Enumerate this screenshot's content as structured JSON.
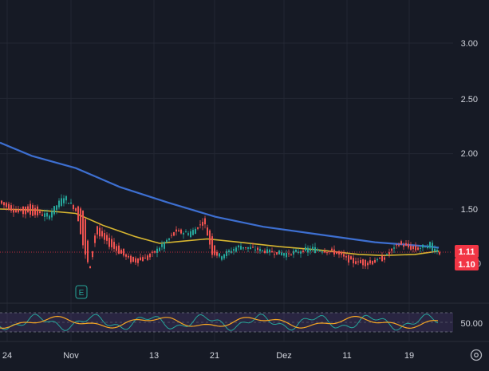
{
  "chart": {
    "price_axis": {
      "labels": [
        "3.00",
        "2.50",
        "2.00",
        "1.50"
      ],
      "values": [
        3.0,
        2.5,
        2.0,
        1.5
      ],
      "partial_label": "0"
    },
    "price_tags": {
      "upper": {
        "label": "1.11",
        "color": "#f23645"
      },
      "lower": {
        "label": "1.10",
        "color": "#f23645"
      }
    },
    "earnings_marker": {
      "label": "E"
    },
    "indicator": {
      "axis_label": "50.00",
      "band_color": "#7e57c2"
    },
    "time_axis": {
      "labels": [
        "24",
        "Nov",
        "13",
        "21",
        "Dez",
        "11",
        "19"
      ]
    },
    "settings_icon": "gear-icon"
  },
  "chart_data": {
    "type": "candlestick",
    "ylim": [
      0.95,
      3.15
    ],
    "yticks": [
      1.5,
      2.0,
      2.5,
      3.0
    ],
    "grid": true,
    "x_tick_labels": [
      "24",
      "Nov",
      "13",
      "21",
      "Dez",
      "11",
      "19"
    ],
    "last_value_labels": [
      "1.11",
      "1.10"
    ],
    "series": [
      {
        "type": "line",
        "color": "#3d6fd1",
        "values_by_x": [
          [
            0,
            2.1
          ],
          [
            40,
            1.98
          ],
          [
            95,
            1.87
          ],
          [
            150,
            1.7
          ],
          [
            210,
            1.56
          ],
          [
            270,
            1.43
          ],
          [
            330,
            1.34
          ],
          [
            400,
            1.27
          ],
          [
            470,
            1.2
          ],
          [
            540,
            1.16
          ],
          [
            550,
            1.15
          ]
        ]
      },
      {
        "type": "line",
        "color": "#d6b530",
        "values_by_x": [
          [
            0,
            1.5
          ],
          [
            50,
            1.49
          ],
          [
            95,
            1.46
          ],
          [
            130,
            1.35
          ],
          [
            170,
            1.25
          ],
          [
            200,
            1.19
          ],
          [
            230,
            1.21
          ],
          [
            260,
            1.23
          ],
          [
            300,
            1.2
          ],
          [
            350,
            1.16
          ],
          [
            400,
            1.13
          ],
          [
            450,
            1.09
          ],
          [
            480,
            1.08
          ],
          [
            520,
            1.09
          ],
          [
            550,
            1.12
          ]
        ]
      }
    ],
    "candles_by_x": [
      [
        0,
        1.58,
        1.55
      ],
      [
        20,
        1.5,
        1.47
      ],
      [
        40,
        1.55,
        1.45
      ],
      [
        60,
        1.4,
        1.45
      ],
      [
        80,
        1.58,
        1.62
      ],
      [
        95,
        1.52,
        1.48
      ],
      [
        105,
        1.48,
        1.1
      ],
      [
        112,
        1.0,
        0.95
      ],
      [
        120,
        1.35,
        1.28
      ],
      [
        135,
        1.25,
        1.18
      ],
      [
        150,
        1.15,
        1.1
      ],
      [
        165,
        1.05,
        1.02
      ],
      [
        185,
        1.08,
        1.05
      ],
      [
        205,
        1.15,
        1.2
      ],
      [
        220,
        1.32,
        1.28
      ],
      [
        240,
        1.25,
        1.3
      ],
      [
        255,
        1.42,
        1.38
      ],
      [
        265,
        1.25,
        1.1
      ],
      [
        275,
        1.05,
        1.08
      ],
      [
        300,
        1.15,
        1.17
      ],
      [
        330,
        1.13,
        1.12
      ],
      [
        360,
        1.08,
        1.1
      ],
      [
        390,
        1.12,
        1.15
      ],
      [
        420,
        1.13,
        1.1
      ],
      [
        440,
        1.05,
        1.02
      ],
      [
        460,
        1.03,
        1.0
      ],
      [
        480,
        1.06,
        1.05
      ],
      [
        500,
        1.2,
        1.18
      ],
      [
        520,
        1.15,
        1.13
      ],
      [
        540,
        1.13,
        1.2
      ],
      [
        550,
        1.12,
        1.1
      ]
    ],
    "indicator": {
      "reference_level": 50.0,
      "lines": [
        "#26a69a",
        "#f5a623"
      ]
    }
  }
}
